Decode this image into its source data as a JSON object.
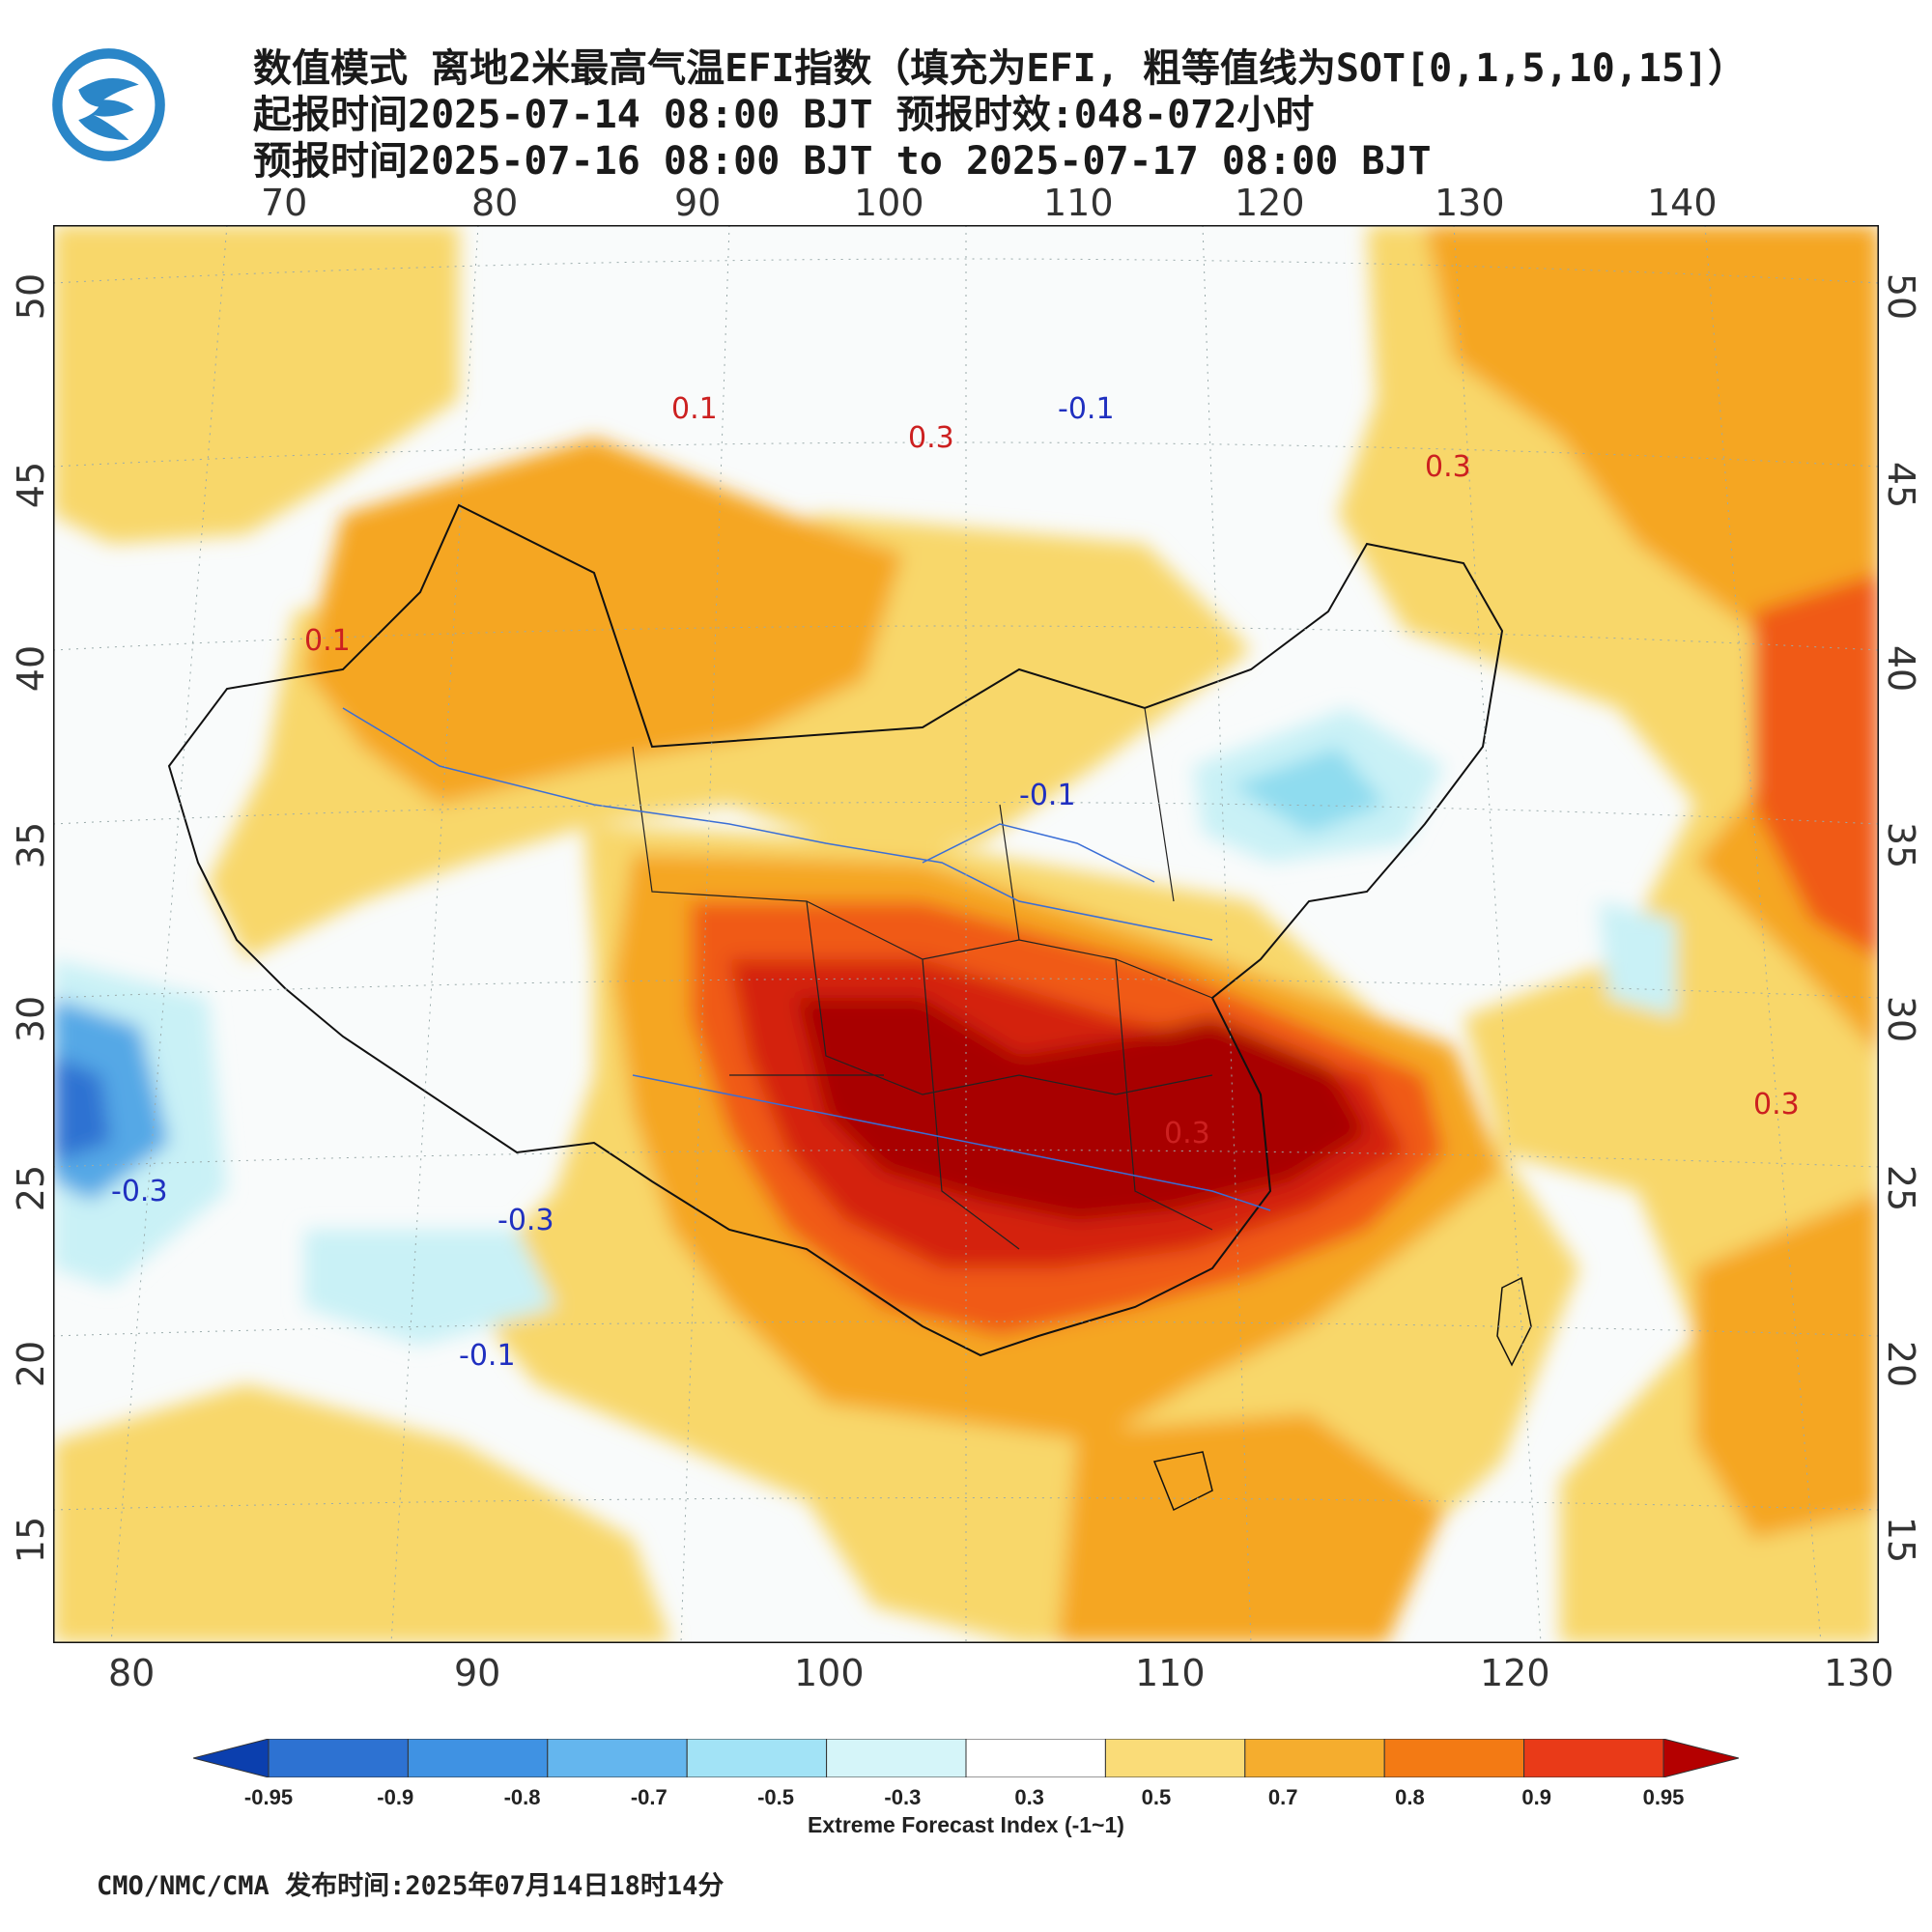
{
  "header": {
    "title_line1": "数值模式 离地2米最高气温EFI指数（填充为EFI, 粗等值线为SOT[0,1,5,10,15]）",
    "title_line2": "起报时间2025-07-14 08:00 BJT 预报时效:048-072小时",
    "title_line3": "预报时间2025-07-16 08:00 BJT to 2025-07-17 08:00 BJT"
  },
  "map": {
    "top_lon_ticks": [
      "70",
      "80",
      "90",
      "100",
      "110",
      "120",
      "130",
      "140"
    ],
    "bottom_lon_ticks": [
      "80",
      "90",
      "100",
      "110",
      "120",
      "130"
    ],
    "left_lat_ticks": [
      "50",
      "45",
      "40",
      "35",
      "30",
      "25",
      "20",
      "15"
    ],
    "right_lat_ticks": [
      "50",
      "45",
      "40",
      "35",
      "30",
      "25",
      "20",
      "15"
    ],
    "contour_labels": [
      {
        "text": "0.1",
        "color": "red"
      },
      {
        "text": "0.3",
        "color": "red"
      },
      {
        "text": "-0.1",
        "color": "blue"
      },
      {
        "text": "-0.3",
        "color": "blue"
      }
    ],
    "fill_colors": {
      "deep_red": "#a80000",
      "red": "#d42010",
      "orange_red": "#f05a12",
      "orange": "#f5a623",
      "yellow": "#f8d76a",
      "white": "#f9fbfb",
      "light_blue": "#c9f1f6",
      "sky_blue": "#8fdcef",
      "blue": "#55a8e6",
      "deep_blue": "#2d72d2"
    }
  },
  "colorbar": {
    "labels": [
      "-0.95",
      "-0.9",
      "-0.8",
      "-0.7",
      "-0.5",
      "-0.3",
      "0.3",
      "0.5",
      "0.7",
      "0.8",
      "0.9",
      "0.95"
    ],
    "colors": [
      "#0b3fae",
      "#2d72d2",
      "#3f92e3",
      "#64b6ee",
      "#a2e3f6",
      "#d5f5f9",
      "#ffffff",
      "#fadc78",
      "#f5ad2e",
      "#f37a14",
      "#e93a18",
      "#b40000"
    ],
    "title": "Extreme Forecast Index (-1~1)"
  },
  "footer": {
    "text": "CMO/NMC/CMA 发布时间:2025年07月14日18时14分"
  }
}
